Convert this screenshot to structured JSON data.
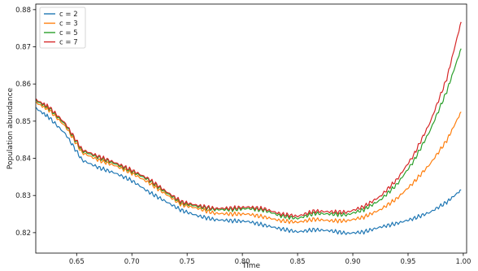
{
  "chart_data": {
    "type": "line",
    "title": "",
    "xlabel": "Time",
    "ylabel": "Population abundance",
    "xlim": [
      0.613,
      1.003
    ],
    "ylim": [
      0.8145,
      0.8815
    ],
    "xticks": [
      0.65,
      0.7,
      0.75,
      0.8,
      0.85,
      0.9,
      0.95,
      1.0
    ],
    "xtick_labels": [
      "0.65",
      "0.70",
      "0.75",
      "0.80",
      "0.85",
      "0.90",
      "0.95",
      "1.00"
    ],
    "yticks": [
      0.82,
      0.83,
      0.84,
      0.85,
      0.86,
      0.87,
      0.88
    ],
    "ytick_labels": [
      "0.82",
      "0.83",
      "0.84",
      "0.85",
      "0.86",
      "0.87",
      "0.88"
    ],
    "grid": false,
    "legend_position": "upper-left",
    "x": [
      0.613,
      0.625,
      0.64,
      0.655,
      0.67,
      0.685,
      0.7,
      0.715,
      0.73,
      0.745,
      0.76,
      0.775,
      0.79,
      0.805,
      0.82,
      0.835,
      0.85,
      0.865,
      0.88,
      0.895,
      0.91,
      0.925,
      0.94,
      0.955,
      0.97,
      0.985,
      0.998
    ],
    "series": [
      {
        "name": "c = 2",
        "color": "#1f77b4",
        "values": [
          0.8535,
          0.851,
          0.8465,
          0.8395,
          0.8375,
          0.836,
          0.834,
          0.831,
          0.8285,
          0.826,
          0.8245,
          0.8235,
          0.8232,
          0.823,
          0.822,
          0.821,
          0.8202,
          0.8208,
          0.8205,
          0.8198,
          0.8202,
          0.8215,
          0.8225,
          0.8238,
          0.8255,
          0.8282,
          0.8315
        ]
      },
      {
        "name": "c = 3",
        "color": "#ff7f0e",
        "values": [
          0.855,
          0.853,
          0.8485,
          0.8415,
          0.8395,
          0.838,
          0.836,
          0.8335,
          0.8305,
          0.8275,
          0.8265,
          0.8252,
          0.825,
          0.825,
          0.8242,
          0.8232,
          0.8228,
          0.8236,
          0.8232,
          0.8232,
          0.8242,
          0.8262,
          0.8292,
          0.8335,
          0.8385,
          0.8448,
          0.8525
        ]
      },
      {
        "name": "c = 5",
        "color": "#2ca02c",
        "values": [
          0.8555,
          0.8535,
          0.849,
          0.842,
          0.8402,
          0.8385,
          0.8365,
          0.8342,
          0.831,
          0.828,
          0.827,
          0.8262,
          0.8262,
          0.8265,
          0.826,
          0.8245,
          0.8238,
          0.8252,
          0.825,
          0.8248,
          0.8262,
          0.8288,
          0.833,
          0.8392,
          0.8475,
          0.858,
          0.8695
        ]
      },
      {
        "name": "c = 7",
        "color": "#d62728",
        "values": [
          0.8558,
          0.8538,
          0.8493,
          0.8423,
          0.8405,
          0.8388,
          0.8368,
          0.8345,
          0.8313,
          0.8283,
          0.8273,
          0.8265,
          0.8266,
          0.8269,
          0.8264,
          0.825,
          0.8244,
          0.8258,
          0.8256,
          0.8255,
          0.827,
          0.8298,
          0.8343,
          0.8408,
          0.8497,
          0.8614,
          0.8767
        ]
      }
    ]
  }
}
